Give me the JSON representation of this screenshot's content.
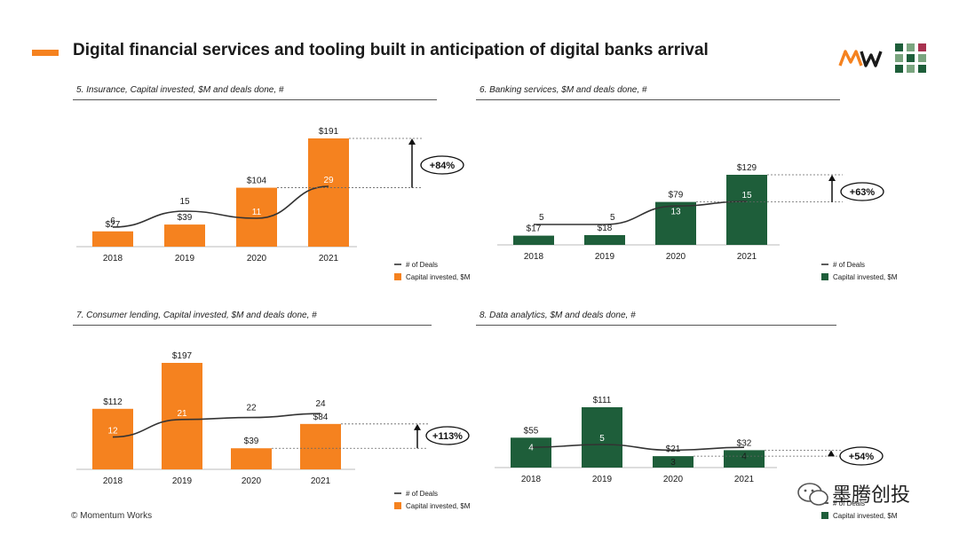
{
  "title": "Digital financial services and tooling built in anticipation of digital banks arrival",
  "source": "© Momentum Works",
  "watermark": "墨腾创投",
  "colors": {
    "orange": "#f5821f",
    "green": "#1e5e3a",
    "line": "#333333",
    "brand_orange": "#f5821f"
  },
  "chart_data": [
    {
      "type": "bar",
      "title": "5. Insurance, Capital invested, $M and deals done, #",
      "categories": [
        "2018",
        "2019",
        "2020",
        "2021"
      ],
      "values": [
        27,
        39,
        104,
        191
      ],
      "value_labels": [
        "$27",
        "$39",
        "$104",
        "$191"
      ],
      "deals": [
        6,
        15,
        11,
        29
      ],
      "ylim": [
        0,
        200
      ],
      "growth_label": "+84%",
      "color": "orange",
      "legend": [
        "# of Deals",
        "Capital invested, $M"
      ],
      "deal_label_pos": [
        "center",
        "above",
        "inside",
        "inside"
      ]
    },
    {
      "type": "bar",
      "title": "6. Banking services, $M and deals done, #",
      "categories": [
        "2018",
        "2019",
        "2020",
        "2021"
      ],
      "values": [
        17,
        18,
        79,
        129
      ],
      "value_labels": [
        "$17",
        "$18",
        "$79",
        "$129"
      ],
      "deals": [
        5,
        5,
        13,
        15
      ],
      "ylim": [
        0,
        200
      ],
      "growth_label": "+63%",
      "color": "green",
      "legend": [
        "# of Deals",
        "Capital invested, $M"
      ],
      "deal_label_pos": [
        "right",
        "right",
        "inside",
        "inside"
      ]
    },
    {
      "type": "bar",
      "title": "7. Consumer lending, Capital invested, $M and deals done, #",
      "categories": [
        "2018",
        "2019",
        "2020",
        "2021"
      ],
      "values": [
        112,
        197,
        39,
        84
      ],
      "value_labels": [
        "$112",
        "$197",
        "$39",
        "$84"
      ],
      "deals": [
        12,
        21,
        22,
        24
      ],
      "ylim": [
        0,
        200
      ],
      "growth_label": "+113%",
      "color": "orange",
      "legend": [
        "# of Deals",
        "Capital invested, $M"
      ],
      "deal_label_pos": [
        "inside",
        "inside",
        "above",
        "above"
      ]
    },
    {
      "type": "bar",
      "title": "8. Data analytics, $M and deals done, #",
      "categories": [
        "2018",
        "2019",
        "2020",
        "2021"
      ],
      "values": [
        55,
        111,
        21,
        32
      ],
      "value_labels": [
        "$55",
        "$111",
        "$21",
        "$32"
      ],
      "deals": [
        4,
        5,
        3,
        4
      ],
      "ylim": [
        0,
        200
      ],
      "growth_label": "+54%",
      "color": "green",
      "legend": [
        "# of Deals",
        "Capital invested, $M"
      ],
      "deal_label_pos": [
        "inside",
        "inside",
        "inside",
        "inside"
      ]
    }
  ]
}
